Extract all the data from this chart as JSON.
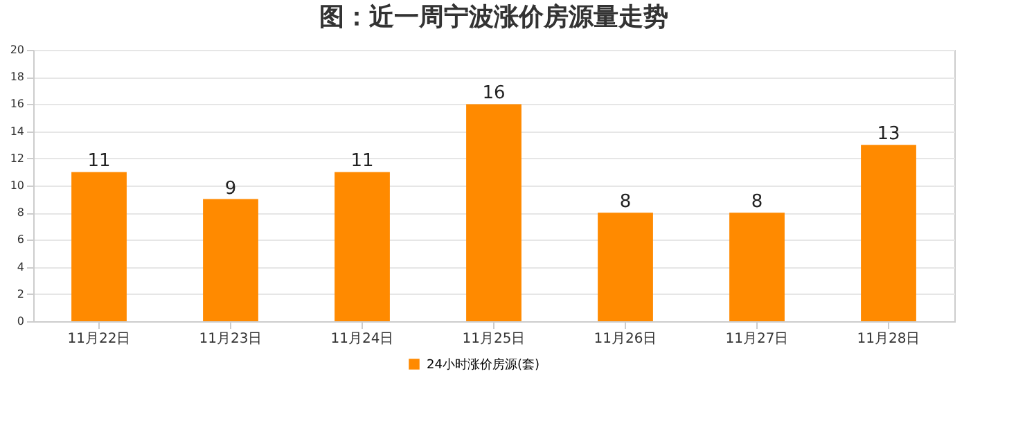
{
  "chart_data": {
    "type": "bar",
    "title": "图：近一周宁波涨价房源量走势",
    "categories": [
      "11月22日",
      "11月23日",
      "11月24日",
      "11月25日",
      "11月26日",
      "11月27日",
      "11月28日"
    ],
    "series": [
      {
        "name": "24小时涨价房源(套)",
        "color": "#ff8a00",
        "values": [
          11,
          9,
          11,
          16,
          8,
          8,
          13
        ]
      }
    ],
    "ylim": [
      0,
      20
    ],
    "yticks": [
      0,
      2,
      4,
      6,
      8,
      10,
      12,
      14,
      16,
      18,
      20
    ],
    "grid": "y",
    "legend": "bottom",
    "data_labels": true
  }
}
